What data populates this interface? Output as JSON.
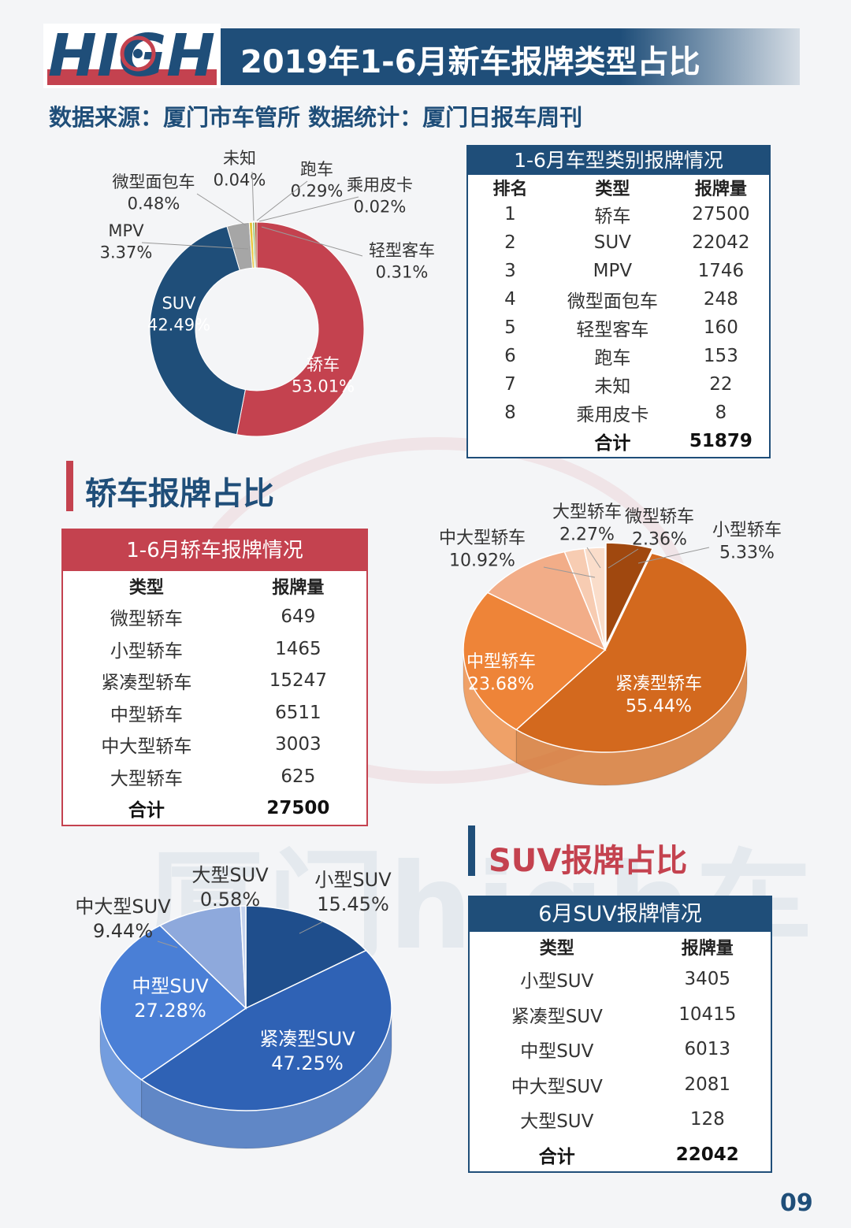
{
  "header": {
    "logo_text": "HIGH",
    "title": "2019年1-6月新车报牌类型占比"
  },
  "subtitle": "数据来源：厦门市车管所  数据统计：厦门日报车周刊",
  "section_sedan_title": "轿车报牌占比",
  "section_suv_title": "SUV报牌占比",
  "watermark": "厦门high车",
  "page_number": "09",
  "table_types": {
    "title": "1-6月车型类别报牌情况",
    "headers": [
      "排名",
      "类型",
      "报牌量"
    ],
    "rows": [
      [
        "1",
        "轿车",
        "27500"
      ],
      [
        "2",
        "SUV",
        "22042"
      ],
      [
        "3",
        "MPV",
        "1746"
      ],
      [
        "4",
        "微型面包车",
        "248"
      ],
      [
        "5",
        "轻型客车",
        "160"
      ],
      [
        "6",
        "跑车",
        "153"
      ],
      [
        "7",
        "未知",
        "22"
      ],
      [
        "8",
        "乘用皮卡",
        "8"
      ]
    ],
    "total_label": "合计",
    "total_value": "51879"
  },
  "table_sedan": {
    "title": "1-6月轿车报牌情况",
    "headers": [
      "类型",
      "报牌量"
    ],
    "rows": [
      [
        "微型轿车",
        "649"
      ],
      [
        "小型轿车",
        "1465"
      ],
      [
        "紧凑型轿车",
        "15247"
      ],
      [
        "中型轿车",
        "6511"
      ],
      [
        "中大型轿车",
        "3003"
      ],
      [
        "大型轿车",
        "625"
      ]
    ],
    "total_label": "合计",
    "total_value": "27500"
  },
  "table_suv": {
    "title": "6月SUV报牌情况",
    "headers": [
      "类型",
      "报牌量"
    ],
    "rows": [
      [
        "小型SUV",
        "3405"
      ],
      [
        "紧凑型SUV",
        "10415"
      ],
      [
        "中型SUV",
        "6013"
      ],
      [
        "中大型SUV",
        "2081"
      ],
      [
        "大型SUV",
        "128"
      ]
    ],
    "total_label": "合计",
    "total_value": "22042"
  },
  "chart_data": [
    {
      "type": "pie",
      "variant": "donut",
      "slices": [
        {
          "label": "轿车",
          "pct": "53.01%",
          "value": 53.01,
          "color": "#c4424f"
        },
        {
          "label": "SUV",
          "pct": "42.49%",
          "value": 42.49,
          "color": "#1f4e79"
        },
        {
          "label": "MPV",
          "pct": "3.37%",
          "value": 3.37,
          "color": "#a6a6a6"
        },
        {
          "label": "微型面包车",
          "pct": "0.48%",
          "value": 0.48,
          "color": "#e8c43a"
        },
        {
          "label": "未知",
          "pct": "0.04%",
          "value": 0.04,
          "color": "#2e75b6"
        },
        {
          "label": "跑车",
          "pct": "0.29%",
          "value": 0.29,
          "color": "#70ad47"
        },
        {
          "label": "乘用皮卡",
          "pct": "0.02%",
          "value": 0.02,
          "color": "#264478"
        },
        {
          "label": "轻型客车",
          "pct": "0.31%",
          "value": 0.31,
          "color": "#9e480e"
        }
      ]
    },
    {
      "type": "pie",
      "variant": "3d",
      "slices": [
        {
          "label": "小型轿车",
          "pct": "5.33%",
          "value": 5.33,
          "color": "#a0480f"
        },
        {
          "label": "紧凑型轿车",
          "pct": "55.44%",
          "value": 55.44,
          "color": "#d3691e"
        },
        {
          "label": "中型轿车",
          "pct": "23.68%",
          "value": 23.68,
          "color": "#ee8438"
        },
        {
          "label": "中大型轿车",
          "pct": "10.92%",
          "value": 10.92,
          "color": "#f2ad88"
        },
        {
          "label": "大型轿车",
          "pct": "2.27%",
          "value": 2.27,
          "color": "#f7ccb2"
        },
        {
          "label": "微型轿车",
          "pct": "2.36%",
          "value": 2.36,
          "color": "#faddca"
        }
      ]
    },
    {
      "type": "pie",
      "variant": "3d",
      "slices": [
        {
          "label": "小型SUV",
          "pct": "15.45%",
          "value": 15.45,
          "color": "#1f4e8c"
        },
        {
          "label": "紧凑型SUV",
          "pct": "47.25%",
          "value": 47.25,
          "color": "#2f62b5"
        },
        {
          "label": "中型SUV",
          "pct": "27.28%",
          "value": 27.28,
          "color": "#4a7fd6"
        },
        {
          "label": "中大型SUV",
          "pct": "9.44%",
          "value": 9.44,
          "color": "#8ea9dc"
        },
        {
          "label": "大型SUV",
          "pct": "0.58%",
          "value": 0.58,
          "color": "#c5d3ee"
        }
      ]
    }
  ]
}
